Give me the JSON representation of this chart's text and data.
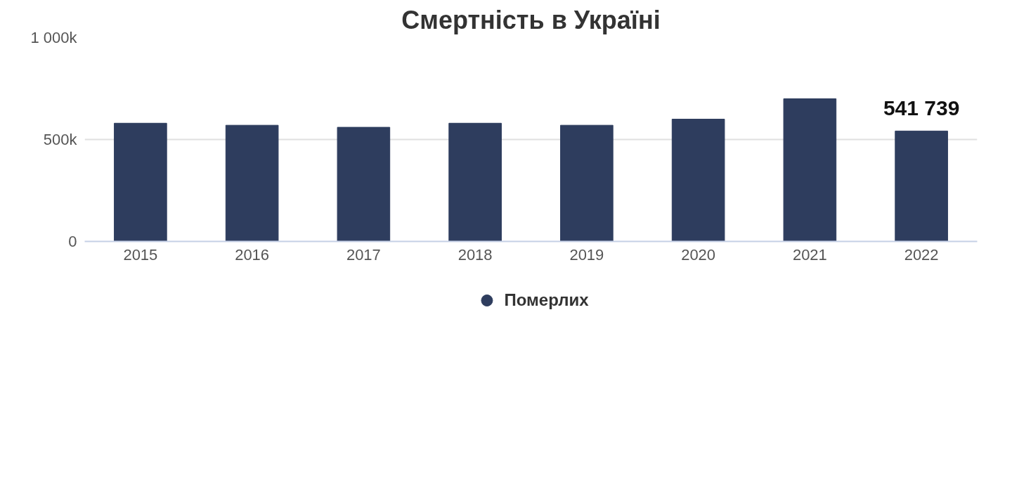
{
  "chart_data": {
    "type": "bar",
    "title": "Смертність в Україні",
    "categories": [
      "2015",
      "2016",
      "2017",
      "2018",
      "2019",
      "2020",
      "2021",
      "2022"
    ],
    "series": [
      {
        "name": "Померлих",
        "color": "#2e3d5e",
        "values": [
          580000,
          570000,
          560000,
          580000,
          570000,
          600000,
          700000,
          541739
        ],
        "value_labels": [
          null,
          null,
          null,
          null,
          null,
          null,
          null,
          "541 739"
        ]
      }
    ],
    "ylim": [
      0,
      1000000
    ],
    "yticks": [
      0,
      {
        "value": 500000,
        "label": "500k"
      },
      {
        "value": 1000000,
        "label": "1 000k"
      }
    ],
    "grid": "y",
    "legend": "bottom"
  }
}
